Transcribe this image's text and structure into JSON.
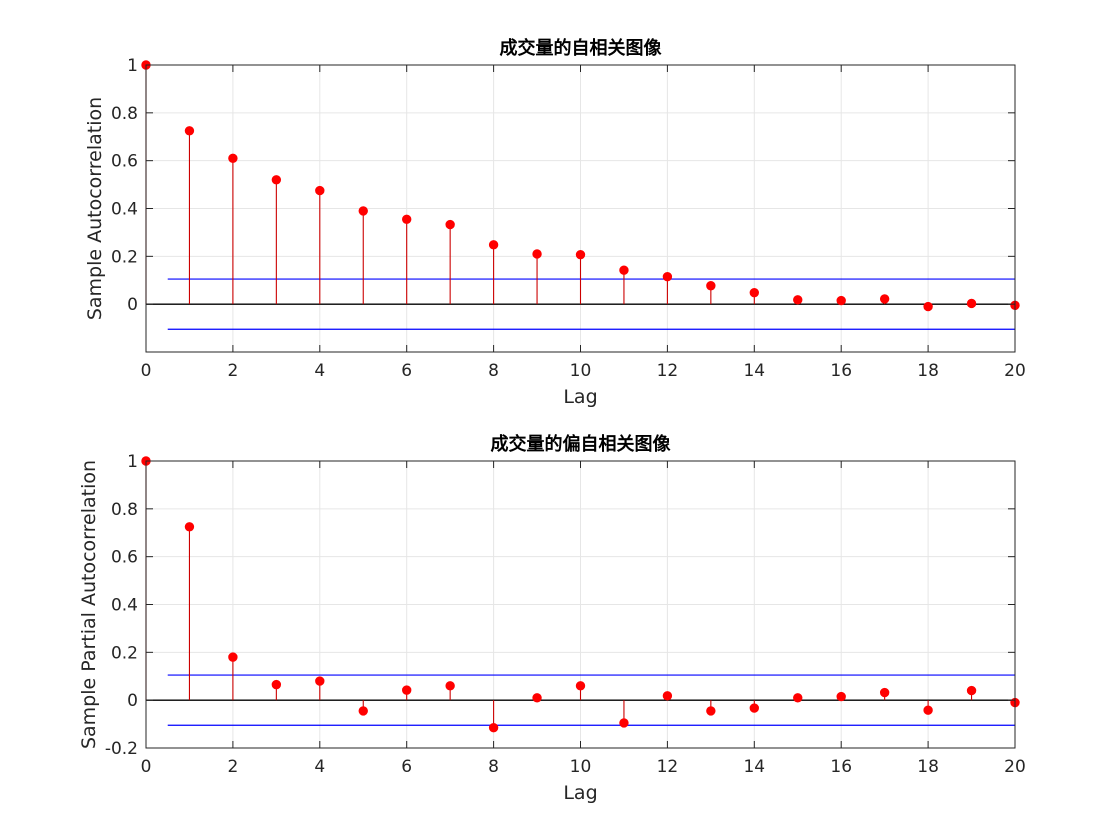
{
  "colors": {
    "stem": "#cc0000",
    "marker": "#ff0000",
    "bound": "#0000ff",
    "zero_line": "#000000",
    "grid": "#e6e6e6",
    "axes": "#262626"
  },
  "chart_data": [
    {
      "type": "stem",
      "title": "成交量的自相关图像",
      "xlabel": "Lag",
      "ylabel": "Sample Autocorrelation",
      "xlim": [
        0,
        20
      ],
      "ylim": [
        -0.2,
        1
      ],
      "xticks": [
        0,
        2,
        4,
        6,
        8,
        10,
        12,
        14,
        16,
        18,
        20
      ],
      "yticks": [
        0,
        0.2,
        0.4,
        0.6,
        0.8,
        1
      ],
      "grid": true,
      "x": [
        0,
        1,
        2,
        3,
        4,
        5,
        6,
        7,
        8,
        9,
        10,
        11,
        12,
        13,
        14,
        15,
        16,
        17,
        18,
        19,
        20
      ],
      "values": [
        1.0,
        0.725,
        0.61,
        0.52,
        0.475,
        0.39,
        0.355,
        0.333,
        0.248,
        0.21,
        0.207,
        0.142,
        0.115,
        0.077,
        0.048,
        0.018,
        0.015,
        0.022,
        -0.01,
        0.003,
        -0.005
      ],
      "confidence_bounds": [
        -0.105,
        0.105
      ],
      "bounds_x_range": [
        0.5,
        20
      ]
    },
    {
      "type": "stem",
      "title": "成交量的偏自相关图像",
      "xlabel": "Lag",
      "ylabel": "Sample Partial Autocorrelation",
      "xlim": [
        0,
        20
      ],
      "ylim": [
        -0.2,
        1
      ],
      "xticks": [
        0,
        2,
        4,
        6,
        8,
        10,
        12,
        14,
        16,
        18,
        20
      ],
      "yticks": [
        -0.2,
        0,
        0.2,
        0.4,
        0.6,
        0.8,
        1
      ],
      "grid": true,
      "x": [
        0,
        1,
        2,
        3,
        4,
        5,
        6,
        7,
        8,
        9,
        10,
        11,
        12,
        13,
        14,
        15,
        16,
        17,
        18,
        19,
        20
      ],
      "values": [
        1.0,
        0.725,
        0.18,
        0.065,
        0.08,
        -0.045,
        0.042,
        0.06,
        -0.115,
        0.01,
        0.06,
        -0.095,
        0.018,
        -0.045,
        -0.033,
        0.01,
        0.015,
        0.032,
        -0.042,
        0.04,
        -0.01
      ],
      "confidence_bounds": [
        -0.105,
        0.105
      ],
      "bounds_x_range": [
        0.5,
        20
      ]
    }
  ]
}
